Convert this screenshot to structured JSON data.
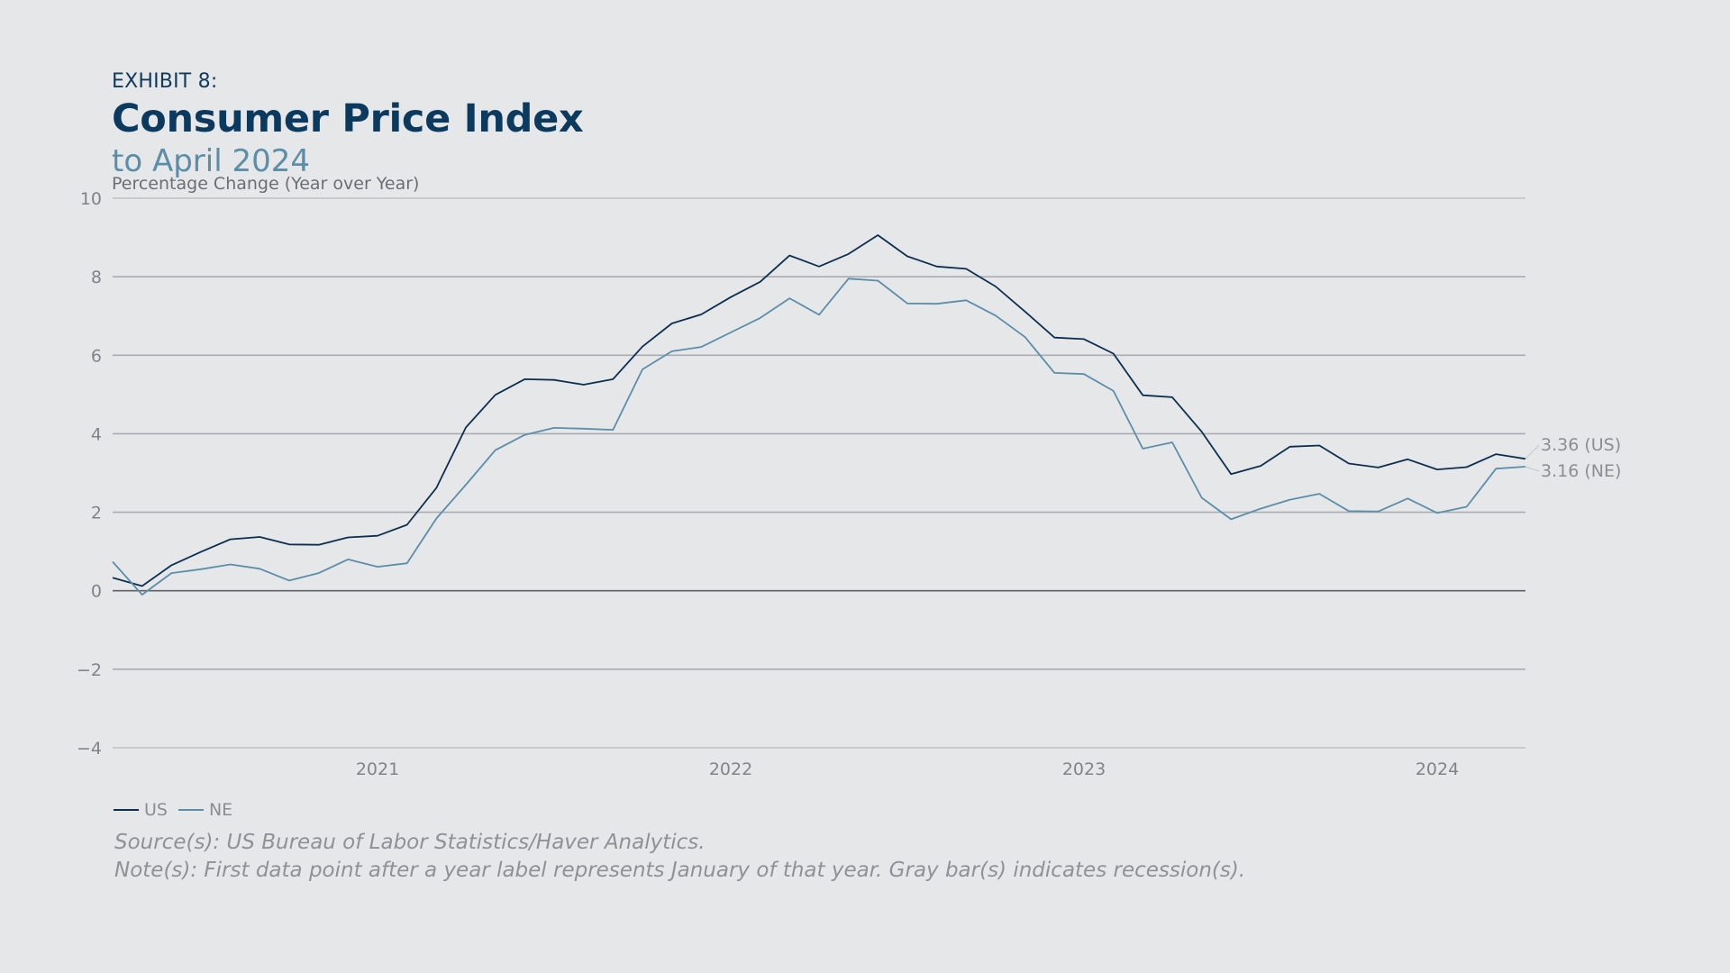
{
  "header": {
    "exhibit": "EXHIBIT 8:",
    "title": "Consumer Price Index",
    "subtitle": "to April 2024"
  },
  "chart_data": {
    "type": "line",
    "ylabel": "Percentage Change (Year over Year)",
    "ylim": [
      -4,
      10
    ],
    "yticks": [
      -4,
      -2,
      0,
      2,
      4,
      6,
      8,
      10
    ],
    "yticks_labels": [
      "−4",
      "−2",
      "0",
      "2",
      "4",
      "6",
      "8",
      "10"
    ],
    "x_start": "2020-04",
    "x_end": "2024-04",
    "x_tick_labels": [
      {
        "label": "2021",
        "date": "2021-01"
      },
      {
        "label": "2022",
        "date": "2022-01"
      },
      {
        "label": "2023",
        "date": "2023-01"
      },
      {
        "label": "2024",
        "date": "2024-01"
      }
    ],
    "grid": true,
    "legend_position": "bottom-left",
    "series": [
      {
        "name": "US",
        "color": "#0d2f4f",
        "end_label": "3.36 (US)",
        "points": [
          [
            "2020-04",
            0.33
          ],
          [
            "2020-05",
            0.12
          ],
          [
            "2020-06",
            0.65
          ],
          [
            "2020-07",
            0.99
          ],
          [
            "2020-08",
            1.31
          ],
          [
            "2020-09",
            1.37
          ],
          [
            "2020-10",
            1.18
          ],
          [
            "2020-11",
            1.17
          ],
          [
            "2020-12",
            1.36
          ],
          [
            "2021-01",
            1.4
          ],
          [
            "2021-02",
            1.68
          ],
          [
            "2021-03",
            2.62
          ],
          [
            "2021-04",
            4.16
          ],
          [
            "2021-05",
            4.99
          ],
          [
            "2021-06",
            5.39
          ],
          [
            "2021-07",
            5.37
          ],
          [
            "2021-08",
            5.25
          ],
          [
            "2021-09",
            5.39
          ],
          [
            "2021-10",
            6.22
          ],
          [
            "2021-11",
            6.81
          ],
          [
            "2021-12",
            7.04
          ],
          [
            "2022-01",
            7.48
          ],
          [
            "2022-02",
            7.87
          ],
          [
            "2022-03",
            8.54
          ],
          [
            "2022-04",
            8.26
          ],
          [
            "2022-05",
            8.58
          ],
          [
            "2022-06",
            9.06
          ],
          [
            "2022-07",
            8.52
          ],
          [
            "2022-08",
            8.26
          ],
          [
            "2022-09",
            8.2
          ],
          [
            "2022-10",
            7.75
          ],
          [
            "2022-11",
            7.11
          ],
          [
            "2022-12",
            6.45
          ],
          [
            "2023-01",
            6.41
          ],
          [
            "2023-02",
            6.04
          ],
          [
            "2023-03",
            4.98
          ],
          [
            "2023-04",
            4.93
          ],
          [
            "2023-05",
            4.05
          ],
          [
            "2023-06",
            2.97
          ],
          [
            "2023-07",
            3.18
          ],
          [
            "2023-08",
            3.67
          ],
          [
            "2023-09",
            3.7
          ],
          [
            "2023-10",
            3.24
          ],
          [
            "2023-11",
            3.14
          ],
          [
            "2023-12",
            3.35
          ],
          [
            "2024-01",
            3.09
          ],
          [
            "2024-02",
            3.15
          ],
          [
            "2024-03",
            3.48
          ],
          [
            "2024-04",
            3.36
          ]
        ]
      },
      {
        "name": "NE",
        "color": "#5b8ea9",
        "end_label": "3.16 (NE)",
        "points": [
          [
            "2020-04",
            0.74
          ],
          [
            "2020-05",
            -0.1
          ],
          [
            "2020-06",
            0.45
          ],
          [
            "2020-07",
            0.55
          ],
          [
            "2020-08",
            0.67
          ],
          [
            "2020-09",
            0.56
          ],
          [
            "2020-10",
            0.26
          ],
          [
            "2020-11",
            0.45
          ],
          [
            "2020-12",
            0.8
          ],
          [
            "2021-01",
            0.61
          ],
          [
            "2021-02",
            0.7
          ],
          [
            "2021-03",
            1.84
          ],
          [
            "2021-04",
            2.7
          ],
          [
            "2021-05",
            3.58
          ],
          [
            "2021-06",
            3.97
          ],
          [
            "2021-07",
            4.15
          ],
          [
            "2021-08",
            4.13
          ],
          [
            "2021-09",
            4.1
          ],
          [
            "2021-10",
            5.64
          ],
          [
            "2021-11",
            6.1
          ],
          [
            "2021-12",
            6.21
          ],
          [
            "2022-01",
            6.58
          ],
          [
            "2022-02",
            6.95
          ],
          [
            "2022-03",
            7.45
          ],
          [
            "2022-04",
            7.03
          ],
          [
            "2022-05",
            7.95
          ],
          [
            "2022-06",
            7.9
          ],
          [
            "2022-07",
            7.32
          ],
          [
            "2022-08",
            7.31
          ],
          [
            "2022-09",
            7.4
          ],
          [
            "2022-10",
            7.01
          ],
          [
            "2022-11",
            6.46
          ],
          [
            "2022-12",
            5.55
          ],
          [
            "2023-01",
            5.52
          ],
          [
            "2023-02",
            5.09
          ],
          [
            "2023-03",
            3.62
          ],
          [
            "2023-04",
            3.78
          ],
          [
            "2023-05",
            2.37
          ],
          [
            "2023-06",
            1.82
          ],
          [
            "2023-07",
            2.09
          ],
          [
            "2023-08",
            2.32
          ],
          [
            "2023-09",
            2.47
          ],
          [
            "2023-10",
            2.03
          ],
          [
            "2023-11",
            2.02
          ],
          [
            "2023-12",
            2.35
          ],
          [
            "2024-01",
            1.98
          ],
          [
            "2024-02",
            2.14
          ],
          [
            "2024-03",
            3.11
          ],
          [
            "2024-04",
            3.16
          ]
        ]
      }
    ]
  },
  "legend": {
    "items": [
      {
        "label": "US",
        "color": "#0d2f4f"
      },
      {
        "label": "NE",
        "color": "#5b8ea9"
      }
    ]
  },
  "notes": {
    "source": "Source(s): US Bureau of Labor Statistics/Haver Analytics.",
    "note": "Note(s): First data point after a year label represents January of that year. Gray bar(s) indicates recession(s)."
  }
}
